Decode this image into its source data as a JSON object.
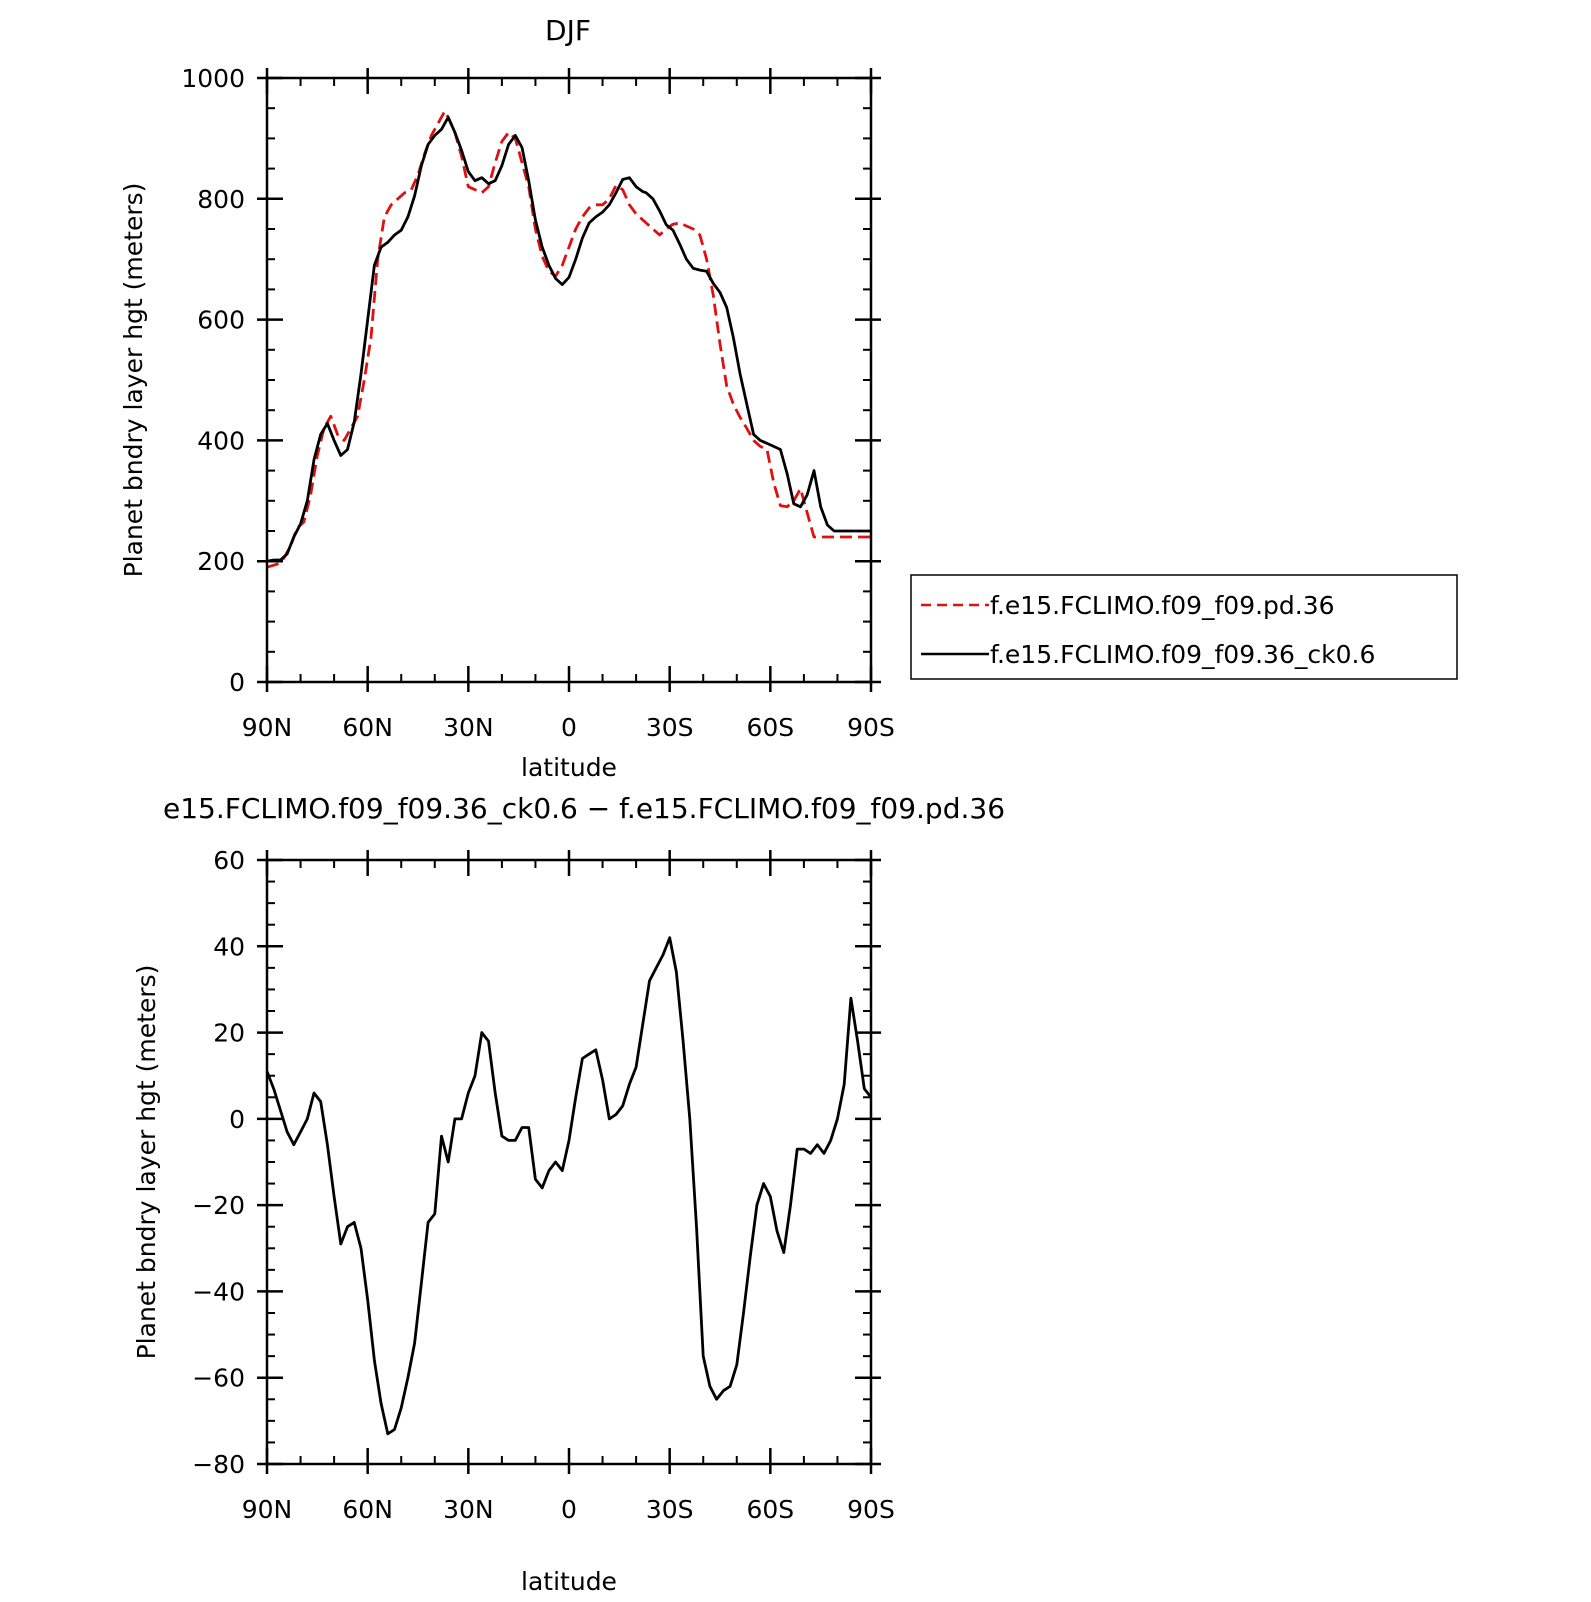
{
  "top_title": "DJF",
  "bottom_title": "e15.FCLIMO.f09_f09.36_ck0.6 − f.e15.FCLIMO.f09_f09.pd.36",
  "colors": {
    "series_pd": "#e01010",
    "series_ck": "#000000",
    "axis": "#000000"
  },
  "chart_data": [
    {
      "type": "line",
      "title": "DJF",
      "xlabel": "latitude",
      "ylabel": "Planet bndry layer hgt (meters)",
      "xlim": [
        90,
        -90
      ],
      "ylim": [
        0,
        1000
      ],
      "x_major_ticks": [
        90,
        60,
        30,
        0,
        -30,
        -60,
        -90
      ],
      "x_tick_labels": [
        "90N",
        "60N",
        "30N",
        "0",
        "30S",
        "60S",
        "90S"
      ],
      "y_major_ticks": [
        0,
        200,
        400,
        600,
        800,
        1000
      ],
      "y_tick_labels": [
        "0",
        "200",
        "400",
        "600",
        "800",
        "1000"
      ],
      "legend_position": "outside-right",
      "series": [
        {
          "name": "f.e15.FCLIMO.f09_f09.pd.36",
          "style": "dashed",
          "color": "#e01010",
          "x": [
            90,
            87,
            85,
            83,
            81,
            79,
            77,
            75,
            73,
            71,
            69,
            67,
            65,
            63,
            61,
            59,
            57,
            55,
            53,
            51,
            49,
            47,
            45,
            43,
            41,
            39,
            37,
            36,
            34,
            32,
            30,
            28,
            26,
            24,
            22,
            20,
            18,
            16,
            14,
            12,
            10,
            8,
            6,
            4,
            2,
            0,
            -2,
            -4,
            -6,
            -8,
            -10,
            -12,
            -14,
            -16,
            -18,
            -20,
            -22,
            -23,
            -25,
            -27,
            -29,
            -31,
            -33,
            -35,
            -37,
            -39,
            -41,
            -43,
            -45,
            -47,
            -49,
            -51,
            -53,
            -55,
            -57,
            -59,
            -61,
            -63,
            -65,
            -67,
            -69,
            -71,
            -73,
            -75,
            -77,
            -79,
            -81,
            -83,
            -85,
            -87,
            -89,
            -90
          ],
          "y": [
            190,
            195,
            205,
            225,
            255,
            265,
            310,
            375,
            420,
            440,
            410,
            400,
            420,
            440,
            500,
            570,
            700,
            770,
            790,
            800,
            810,
            815,
            840,
            875,
            905,
            925,
            945,
            935,
            910,
            870,
            820,
            815,
            810,
            820,
            860,
            895,
            910,
            900,
            860,
            820,
            750,
            705,
            680,
            672,
            690,
            720,
            750,
            770,
            785,
            790,
            790,
            800,
            822,
            815,
            790,
            775,
            765,
            760,
            750,
            740,
            750,
            758,
            760,
            755,
            750,
            740,
            700,
            640,
            560,
            490,
            460,
            438,
            420,
            400,
            390,
            385,
            330,
            292,
            290,
            300,
            320,
            280,
            240,
            240,
            240,
            240,
            240,
            240,
            240,
            240,
            240,
            240
          ],
          "note": "(sampled from visible curve, north to south)"
        },
        {
          "name": "f.e15.FCLIMO.f09_f09.36_ck0.6",
          "style": "solid",
          "color": "#000000",
          "x": [
            90,
            88,
            86,
            84,
            82,
            80,
            78,
            76,
            74,
            72,
            70,
            68,
            66,
            64,
            62,
            60,
            58,
            56,
            54,
            52,
            50,
            48,
            46,
            44,
            42,
            40,
            38,
            36,
            34,
            32,
            30,
            28,
            26,
            24,
            22,
            20,
            18,
            16,
            14,
            12,
            10,
            8,
            6,
            4,
            2,
            0,
            -2,
            -4,
            -6,
            -8,
            -10,
            -12,
            -14,
            -16,
            -18,
            -20,
            -22,
            -23,
            -25,
            -27,
            -29,
            -31,
            -33,
            -35,
            -37,
            -39,
            -41,
            -43,
            -45,
            -47,
            -49,
            -51,
            -53,
            -55,
            -57,
            -59,
            -61,
            -63,
            -65,
            -67,
            -69,
            -71,
            -73,
            -75,
            -77,
            -79,
            -81,
            -83,
            -85,
            -87,
            -89,
            -90
          ],
          "y": [
            200,
            202,
            202,
            212,
            240,
            262,
            300,
            368,
            410,
            428,
            400,
            375,
            385,
            430,
            510,
            600,
            690,
            720,
            728,
            740,
            748,
            770,
            805,
            855,
            890,
            905,
            915,
            935,
            910,
            880,
            845,
            830,
            835,
            825,
            830,
            855,
            890,
            905,
            885,
            830,
            765,
            720,
            690,
            668,
            658,
            670,
            700,
            735,
            760,
            770,
            778,
            790,
            810,
            832,
            835,
            820,
            812,
            810,
            800,
            780,
            757,
            748,
            725,
            700,
            685,
            682,
            680,
            660,
            645,
            620,
            570,
            510,
            460,
            410,
            400,
            395,
            390,
            385,
            345,
            295,
            290,
            310,
            350,
            290,
            260,
            250,
            250,
            250,
            250,
            250,
            250,
            250
          ],
          "note": "(sampled from visible curve, north to south)"
        }
      ]
    },
    {
      "type": "line",
      "title": "e15.FCLIMO.f09_f09.36_ck0.6 − f.e15.FCLIMO.f09_f09.pd.36",
      "xlabel": "latitude",
      "ylabel": "Planet bndry layer hgt (meters)",
      "xlim": [
        90,
        -90
      ],
      "ylim": [
        -80,
        60
      ],
      "x_major_ticks": [
        90,
        60,
        30,
        0,
        -30,
        -60,
        -90
      ],
      "x_tick_labels": [
        "90N",
        "60N",
        "30N",
        "0",
        "30S",
        "60S",
        "90S"
      ],
      "y_major_ticks": [
        -80,
        -60,
        -40,
        -20,
        0,
        20,
        40,
        60
      ],
      "y_tick_labels": [
        "−80",
        "−60",
        "−40",
        "−20",
        "0",
        "20",
        "40",
        "60"
      ],
      "series": [
        {
          "style": "solid",
          "color": "#000000",
          "x": [
            90,
            88,
            86,
            84,
            82,
            80,
            78,
            76,
            74,
            72,
            70,
            68,
            66,
            64,
            62,
            60,
            58,
            56,
            54,
            52,
            50,
            48,
            46,
            44,
            42,
            40,
            38,
            36,
            34,
            32,
            30,
            28,
            26,
            24,
            22,
            20,
            18,
            16,
            14,
            12,
            10,
            8,
            6,
            4,
            2,
            0,
            -2,
            -4,
            -6,
            -8,
            -10,
            -12,
            -14,
            -16,
            -18,
            -20,
            -22,
            -24,
            -26,
            -28,
            -30,
            -32,
            -34,
            -36,
            -38,
            -40,
            -42,
            -44,
            -46,
            -48,
            -50,
            -52,
            -54,
            -56,
            -58,
            -60,
            -62,
            -64,
            -66,
            -68,
            -70,
            -72,
            -74,
            -76,
            -78,
            -80,
            -82,
            -84,
            -86,
            -88,
            -90
          ],
          "y": [
            11,
            7,
            2,
            -3,
            -6,
            -3,
            0,
            6,
            4,
            -6,
            -18,
            -29,
            -25,
            -24,
            -30,
            -42,
            -56,
            -66,
            -73,
            -72,
            -67,
            -60,
            -52,
            -38,
            -24,
            -22,
            -4,
            -10,
            0,
            0,
            6,
            10,
            20,
            18,
            6,
            -4,
            -5,
            -5,
            -2,
            -2,
            -14,
            -16,
            -12,
            -10,
            -12,
            -5,
            5,
            14,
            15,
            16,
            9,
            0,
            1,
            3,
            8,
            12,
            22,
            32,
            35,
            38,
            42,
            34,
            18,
            0,
            -25,
            -55,
            -62,
            -65,
            -63,
            -62,
            -57,
            -45,
            -32,
            -20,
            -15,
            -18,
            -26,
            -31,
            -20,
            -7,
            -7,
            -8,
            -6,
            -8,
            -5,
            0,
            8,
            28,
            18,
            7,
            5
          ]
        }
      ]
    }
  ]
}
